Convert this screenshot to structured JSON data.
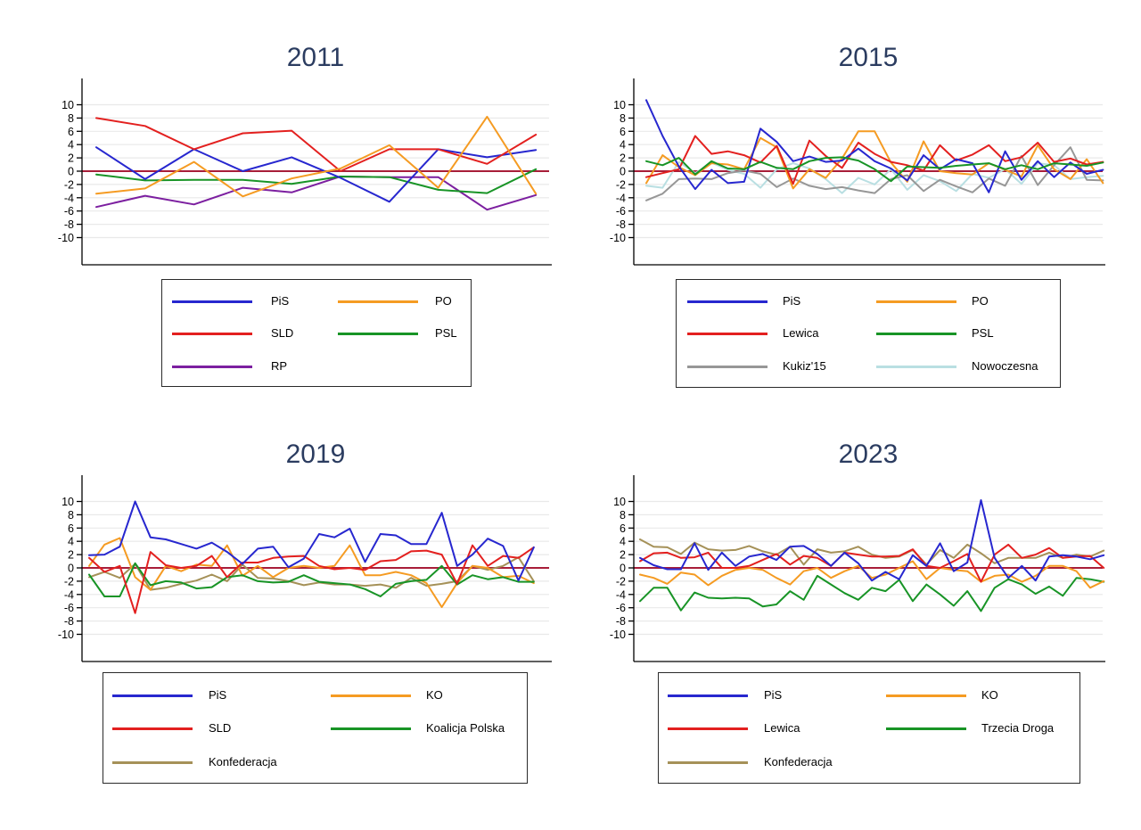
{
  "figure": {
    "background": "#ffffff",
    "y_ticks": [
      10,
      8,
      6,
      4,
      2,
      0,
      -2,
      -4,
      -6,
      -8,
      -10
    ],
    "zero_reference": 0,
    "colors": {
      "PiS": "#2727cf",
      "SLD": "#e3201f",
      "Lewica": "#e3201f",
      "PO": "#f59b22",
      "KO": "#f59b22",
      "PSL": "#189426",
      "Koalicja Polska": "#189426",
      "Trzecia Droga": "#189426",
      "RP": "#7c1fa0",
      "Kukiz'15": "#979797",
      "Nowoczesna": "#b9dfe2",
      "Konfederacja": "#a59158",
      "zero_line": "#a81e39",
      "title": "#2b3c60",
      "grid": "#e9e9e9",
      "axis": "#000000"
    }
  },
  "chart_data": [
    {
      "type": "line",
      "title": "2011",
      "ylim": [
        -14,
        14
      ],
      "yticks": [
        10,
        8,
        6,
        4,
        2,
        0,
        -2,
        -4,
        -6,
        -8,
        -10
      ],
      "grid": true,
      "zero_line": 0,
      "legend_columns": [
        [
          "PiS",
          "SLD",
          "RP"
        ],
        [
          "PO",
          "PSL"
        ]
      ],
      "series": [
        {
          "name": "RP",
          "values": [
            -5.4,
            -3.7,
            -5.0,
            -2.5,
            -3.2,
            -0.8,
            -0.9,
            -0.9,
            -5.8,
            -3.6
          ]
        },
        {
          "name": "PSL",
          "values": [
            -0.5,
            -1.4,
            -1.3,
            -1.3,
            -1.9,
            -0.8,
            -0.9,
            -2.8,
            -3.3,
            0.3
          ]
        },
        {
          "name": "PiS",
          "values": [
            3.6,
            -1.2,
            3.3,
            0.0,
            2.1,
            -1.0,
            -4.6,
            3.3,
            2.1,
            3.2
          ]
        },
        {
          "name": "SLD",
          "values": [
            8.0,
            6.8,
            3.3,
            5.7,
            6.1,
            0.0,
            3.3,
            3.3,
            1.1,
            5.5
          ]
        },
        {
          "name": "PO",
          "values": [
            -3.4,
            -2.6,
            1.4,
            -3.8,
            -1.1,
            0.4,
            3.9,
            -2.5,
            8.2,
            -3.4
          ]
        }
      ]
    },
    {
      "type": "line",
      "title": "2015",
      "ylim": [
        -14,
        14
      ],
      "yticks": [
        10,
        8,
        6,
        4,
        2,
        0,
        -2,
        -4,
        -6,
        -8,
        -10
      ],
      "grid": true,
      "zero_line": 0,
      "legend_columns": [
        [
          "PiS",
          "Lewica",
          "Kukiz'15"
        ],
        [
          "PO",
          "PSL",
          "Nowoczesna"
        ]
      ],
      "series": [
        {
          "name": "Nowoczesna",
          "values": [
            -2.2,
            -2.5,
            1.4,
            -0.3,
            1.3,
            0.2,
            -0.4,
            -2.5,
            0.3,
            1.2,
            0.4,
            -1.2,
            -3.3,
            -1.0,
            -2.0,
            0.3,
            -2.8,
            -0.6,
            -1.5,
            -3.0,
            -0.4,
            -1.0,
            0.3,
            -1.9,
            1.2,
            0.9,
            -1.2,
            -0.9,
            -0.7
          ]
        },
        {
          "name": "Kukiz'15",
          "values": [
            -4.4,
            -3.4,
            -1.2,
            -1.1,
            -1.2,
            -0.3,
            0.1,
            -0.4,
            -2.4,
            -1.1,
            -2.2,
            -2.7,
            -2.4,
            -2.9,
            -3.3,
            -1.2,
            -0.6,
            -3.0,
            -1.3,
            -2.3,
            -3.2,
            -1.1,
            -2.2,
            2.3,
            -2.1,
            0.9,
            3.6,
            -1.3,
            -1.4
          ]
        },
        {
          "name": "PO",
          "values": [
            -1.8,
            2.4,
            0.6,
            -0.6,
            1.2,
            1.0,
            0.3,
            5.0,
            3.6,
            -2.6,
            0.3,
            -1.0,
            1.9,
            6.0,
            6.0,
            1.3,
            -1.6,
            4.5,
            0.0,
            -0.3,
            -0.5,
            1.2,
            0.2,
            -0.8,
            3.9,
            0.3,
            -1.2,
            1.8,
            -1.8
          ]
        },
        {
          "name": "Lewica",
          "values": [
            -0.9,
            -0.3,
            0.3,
            5.3,
            2.6,
            3.0,
            2.4,
            1.3,
            3.8,
            -1.9,
            4.6,
            2.3,
            0.5,
            4.3,
            2.6,
            1.4,
            0.9,
            0.1,
            3.9,
            1.6,
            2.5,
            3.9,
            1.5,
            2.1,
            4.3,
            1.4,
            1.9,
            1.0,
            1.4
          ]
        },
        {
          "name": "PiS",
          "values": [
            10.7,
            5.3,
            0.7,
            -2.7,
            0.2,
            -1.8,
            -1.6,
            6.4,
            4.4,
            1.5,
            2.2,
            1.4,
            1.6,
            3.4,
            1.5,
            0.4,
            -1.4,
            2.4,
            0.3,
            1.8,
            1.2,
            -3.2,
            3.0,
            -1.3,
            1.5,
            -0.9,
            1.3,
            -0.4,
            0.2
          ]
        },
        {
          "name": "PSL",
          "values": [
            1.5,
            0.9,
            2.0,
            -0.5,
            1.5,
            0.4,
            0.3,
            1.4,
            0.5,
            0.3,
            1.5,
            2.0,
            2.1,
            1.6,
            0.3,
            -1.5,
            0.7,
            0.6,
            0.5,
            0.8,
            1.0,
            1.2,
            0.3,
            0.9,
            0.3,
            1.2,
            1.0,
            0.8,
            1.3
          ]
        }
      ]
    },
    {
      "type": "line",
      "title": "2019",
      "ylim": [
        -14,
        14
      ],
      "yticks": [
        10,
        8,
        6,
        4,
        2,
        0,
        -2,
        -4,
        -6,
        -8,
        -10
      ],
      "grid": true,
      "zero_line": 0,
      "legend_columns": [
        [
          "PiS",
          "SLD",
          "Konfederacja"
        ],
        [
          "KO",
          "Koalicja Polska"
        ]
      ],
      "series": [
        {
          "name": "Konfederacja",
          "values": [
            -1.4,
            -0.6,
            -1.5,
            0.6,
            -3.3,
            -3.0,
            -2.4,
            -1.9,
            -1.0,
            -2.0,
            0.5,
            -1.5,
            -1.6,
            -2.0,
            -2.6,
            -2.2,
            -2.5,
            -2.5,
            -2.7,
            -2.5,
            -3.0,
            -1.5,
            -2.7,
            -2.4,
            -2.0,
            0.3,
            -0.3,
            0.3,
            1.6,
            -2.0
          ]
        },
        {
          "name": "KO",
          "values": [
            0.3,
            3.5,
            4.5,
            -1.4,
            -3.3,
            0.3,
            -0.5,
            0.5,
            0.3,
            3.4,
            -1.2,
            0.3,
            -1.4,
            0.0,
            0.3,
            0.0,
            0.3,
            3.4,
            -1.1,
            -1.1,
            -0.6,
            -1.1,
            -2.3,
            -5.9,
            -2.3,
            0.3,
            0.0,
            -1.4,
            -1.2,
            -2.3
          ]
        },
        {
          "name": "Koalicja Polska",
          "values": [
            -1.0,
            -4.3,
            -4.3,
            0.7,
            -2.6,
            -2.0,
            -2.2,
            -3.1,
            -2.9,
            -1.4,
            -1.1,
            -2.0,
            -2.2,
            -2.1,
            -1.1,
            -2.1,
            -2.3,
            -2.5,
            -3.2,
            -4.3,
            -2.4,
            -2.0,
            -1.8,
            0.3,
            -2.5,
            -1.1,
            -1.7,
            -1.4,
            -2.1,
            -2.1
          ]
        },
        {
          "name": "SLD",
          "values": [
            1.5,
            -0.6,
            0.3,
            -6.8,
            2.4,
            0.4,
            0.0,
            0.3,
            1.8,
            -1.4,
            0.8,
            0.8,
            1.5,
            1.7,
            1.8,
            0.3,
            -0.2,
            0.0,
            -0.3,
            1.0,
            1.2,
            2.5,
            2.6,
            2.0,
            -2.4,
            3.4,
            0.3,
            1.8,
            1.5,
            3.1
          ]
        },
        {
          "name": "PiS",
          "values": [
            1.9,
            2.0,
            3.2,
            10.0,
            4.6,
            4.3,
            3.6,
            2.9,
            3.8,
            2.4,
            0.6,
            2.9,
            3.2,
            0.1,
            1.4,
            5.1,
            4.6,
            5.9,
            0.9,
            5.1,
            4.9,
            3.6,
            3.6,
            8.3,
            0.3,
            2.0,
            4.4,
            3.3,
            -1.9,
            3.1
          ]
        }
      ]
    },
    {
      "type": "line",
      "title": "2023",
      "ylim": [
        -14,
        14
      ],
      "yticks": [
        10,
        8,
        6,
        4,
        2,
        0,
        -2,
        -4,
        -6,
        -8,
        -10
      ],
      "grid": true,
      "zero_line": 0,
      "legend_columns": [
        [
          "PiS",
          "Lewica",
          "Konfederacja"
        ],
        [
          "KO",
          "Trzecia Droga"
        ]
      ],
      "series": [
        {
          "name": "Trzecia Droga",
          "values": [
            -5.0,
            -3.0,
            -3.0,
            -6.4,
            -3.7,
            -4.5,
            -4.6,
            -4.5,
            -4.6,
            -5.8,
            -5.5,
            -3.5,
            -4.8,
            -1.2,
            -2.5,
            -3.8,
            -4.8,
            -3.0,
            -3.5,
            -1.8,
            -5.0,
            -2.5,
            -4.0,
            -5.7,
            -3.5,
            -6.5,
            -3.0,
            -1.7,
            -2.5,
            -3.9,
            -2.8,
            -4.2,
            -1.5,
            -1.7,
            -2.1
          ]
        },
        {
          "name": "KO",
          "values": [
            -1.0,
            -1.5,
            -2.4,
            -0.7,
            -1.0,
            -2.6,
            -1.2,
            -0.3,
            0.0,
            -0.3,
            -1.5,
            -2.5,
            -0.5,
            0.0,
            -1.5,
            -0.5,
            0.3,
            -1.5,
            -1.0,
            0.0,
            1.0,
            -1.7,
            0.0,
            -0.3,
            -0.5,
            -2.1,
            -1.2,
            -1.0,
            -2.1,
            -1.2,
            0.3,
            0.3,
            -0.5,
            -3.0,
            -2.0
          ]
        },
        {
          "name": "Konfederacja",
          "values": [
            4.3,
            3.2,
            3.1,
            2.1,
            3.8,
            2.8,
            2.6,
            2.7,
            3.3,
            2.5,
            2.0,
            3.2,
            0.5,
            2.8,
            2.3,
            2.5,
            3.2,
            2.0,
            1.5,
            1.7,
            2.7,
            0.5,
            2.7,
            1.5,
            3.5,
            2.2,
            0.7,
            1.5,
            1.5,
            1.5,
            2.3,
            1.5,
            2.0,
            1.7,
            2.6
          ]
        },
        {
          "name": "Lewica",
          "values": [
            1.0,
            2.2,
            2.3,
            1.5,
            1.6,
            2.3,
            0.0,
            0.0,
            0.3,
            1.2,
            2.1,
            0.5,
            1.8,
            1.5,
            0.3,
            2.3,
            2.0,
            1.7,
            1.7,
            1.8,
            2.8,
            0.3,
            0.0,
            1.0,
            2.1,
            -2.1,
            2.0,
            3.5,
            1.5,
            2.0,
            3.0,
            1.5,
            1.7,
            1.8,
            0.0
          ]
        },
        {
          "name": "PiS",
          "values": [
            1.5,
            0.4,
            -0.2,
            -0.2,
            3.7,
            -0.3,
            2.3,
            0.3,
            1.7,
            2.1,
            1.2,
            3.2,
            3.3,
            2.1,
            0.3,
            2.3,
            0.7,
            -1.9,
            -0.6,
            -1.7,
            1.9,
            0.3,
            3.7,
            -0.5,
            0.8,
            10.2,
            1.5,
            -1.5,
            0.3,
            -1.9,
            1.7,
            1.9,
            1.7,
            1.3,
            1.9
          ]
        }
      ]
    }
  ]
}
